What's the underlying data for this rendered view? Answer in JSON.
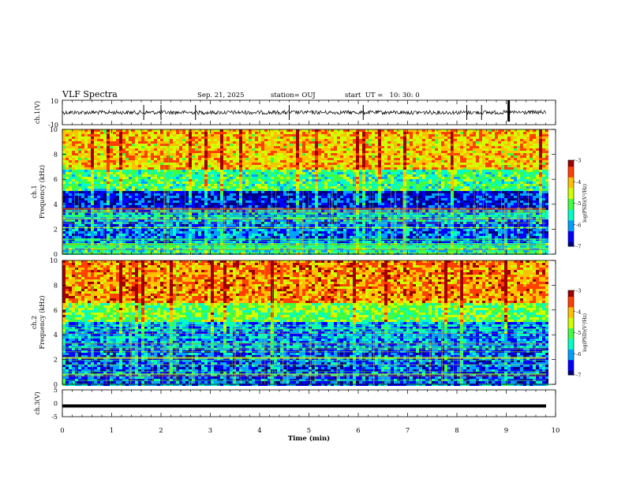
{
  "header": {
    "title": "VLF Spectra",
    "date": "Sep. 21, 2025",
    "station": "station= OUJ",
    "start": "start  UT =   10: 30: 0"
  },
  "chart_data": [
    {
      "id": "ch1-waveform",
      "type": "line",
      "ylabel": "ch.1(V)",
      "ylim": [
        -10,
        10
      ],
      "yticks": [
        "10",
        "-10"
      ],
      "xlim": [
        0,
        10
      ],
      "description_values": {
        "baseline": 0,
        "noise_amplitude": 1.5,
        "spikes_at_min": [
          1.65,
          2.0,
          2.7,
          4.6,
          6.1,
          8.2,
          8.5,
          9.05
        ]
      }
    },
    {
      "id": "ch1-spectrogram",
      "type": "heatmap",
      "ylabel": "ch.1\nFrequency  (kHz)",
      "ylabel_top": "ch.1",
      "ylabel_bottom": "Frequency  (kHz)",
      "xlim": [
        0,
        9.8
      ],
      "ylim": [
        0,
        10
      ],
      "yticks": [
        "0",
        "2",
        "4",
        "6",
        "8",
        "10"
      ],
      "colorbar": {
        "label": "log(PSD)(V²/Hz)",
        "range": [
          -7,
          -3
        ],
        "ticks": [
          "-3",
          "-4",
          "-5",
          "-6",
          "-7"
        ]
      },
      "bands_khz": [
        {
          "from": 6.8,
          "to": 10,
          "level": -4.1
        },
        {
          "from": 5.0,
          "to": 6.8,
          "level": -5.2
        },
        {
          "from": 3.6,
          "to": 5.0,
          "level": -6.6
        },
        {
          "from": 2.6,
          "to": 3.6,
          "level": -5.8
        },
        {
          "from": 0.8,
          "to": 2.6,
          "level": -6.2
        },
        {
          "from": 0,
          "to": 0.8,
          "level": -5.4
        }
      ]
    },
    {
      "id": "ch2-spectrogram",
      "type": "heatmap",
      "ylabel_top": "ch.2",
      "ylabel_bottom": "Frequency  (kHz)",
      "xlim": [
        0,
        9.8
      ],
      "ylim": [
        0,
        10
      ],
      "yticks": [
        "0",
        "2",
        "4",
        "6",
        "8",
        "10"
      ],
      "colorbar": {
        "label": "log(PSD)(V²/Hz)",
        "range": [
          -7,
          -3
        ],
        "ticks": [
          "-3",
          "-4",
          "-5",
          "-6",
          "-7"
        ]
      },
      "bands_khz": [
        {
          "from": 6.5,
          "to": 10,
          "level": -3.8
        },
        {
          "from": 5.0,
          "to": 6.5,
          "level": -4.9
        },
        {
          "from": 3.0,
          "to": 5.0,
          "level": -6.0
        },
        {
          "from": 0,
          "to": 3.0,
          "level": -6.3
        }
      ]
    },
    {
      "id": "ch3-waveform",
      "type": "line",
      "ylabel": "ch.3(V)",
      "ylim": [
        -5,
        5
      ],
      "yticks": [
        "5",
        "0",
        "-5"
      ],
      "xlim": [
        0,
        10
      ],
      "description_values": {
        "constant": -1
      }
    }
  ],
  "x_axis": {
    "label": "Time  (min)",
    "range": [
      0,
      10
    ],
    "ticks": [
      "0",
      "1",
      "2",
      "3",
      "4",
      "5",
      "6",
      "7",
      "8",
      "9",
      "10"
    ]
  },
  "colors": {
    "cmap": [
      "#00007f",
      "#0000ff",
      "#00a0ff",
      "#00ffc8",
      "#40ff40",
      "#d0ff00",
      "#ffc000",
      "#ff4000",
      "#a00000"
    ]
  }
}
